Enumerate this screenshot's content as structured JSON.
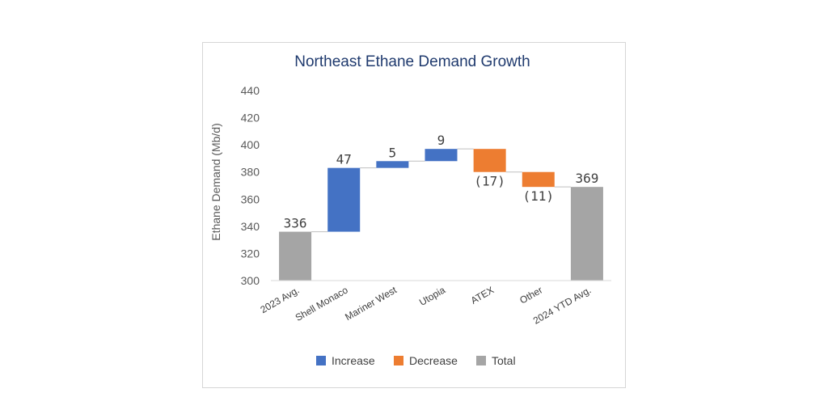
{
  "chart_data": {
    "type": "waterfall",
    "title": "Northeast Ethane Demand Growth",
    "ylabel": "Ethane Demand (Mb/d)",
    "ylim": [
      300,
      440
    ],
    "yticks": [
      300,
      320,
      340,
      360,
      380,
      400,
      420,
      440
    ],
    "categories": [
      "2023 Avg.",
      "Shell Monaco",
      "Mariner West",
      "Utopia",
      "ATEX",
      "Other",
      "2024 YTD Avg."
    ],
    "values": [
      336,
      47,
      5,
      9,
      -17,
      -11,
      369
    ],
    "kinds": [
      "total",
      "increase",
      "increase",
      "increase",
      "decrease",
      "decrease",
      "total"
    ],
    "data_labels": [
      "336",
      "47",
      "5",
      "9",
      "(17)",
      "(11)",
      "369"
    ],
    "legend": {
      "position": "bottom",
      "entries": [
        {
          "key": "increase",
          "label": "Increase"
        },
        {
          "key": "decrease",
          "label": "Decrease"
        },
        {
          "key": "total",
          "label": "Total"
        }
      ]
    },
    "colors": {
      "increase": "#4472c4",
      "decrease": "#ed7d31",
      "total": "#a5a5a5",
      "connector": "#bfbfbf",
      "axis": "#d9d9d9"
    }
  }
}
